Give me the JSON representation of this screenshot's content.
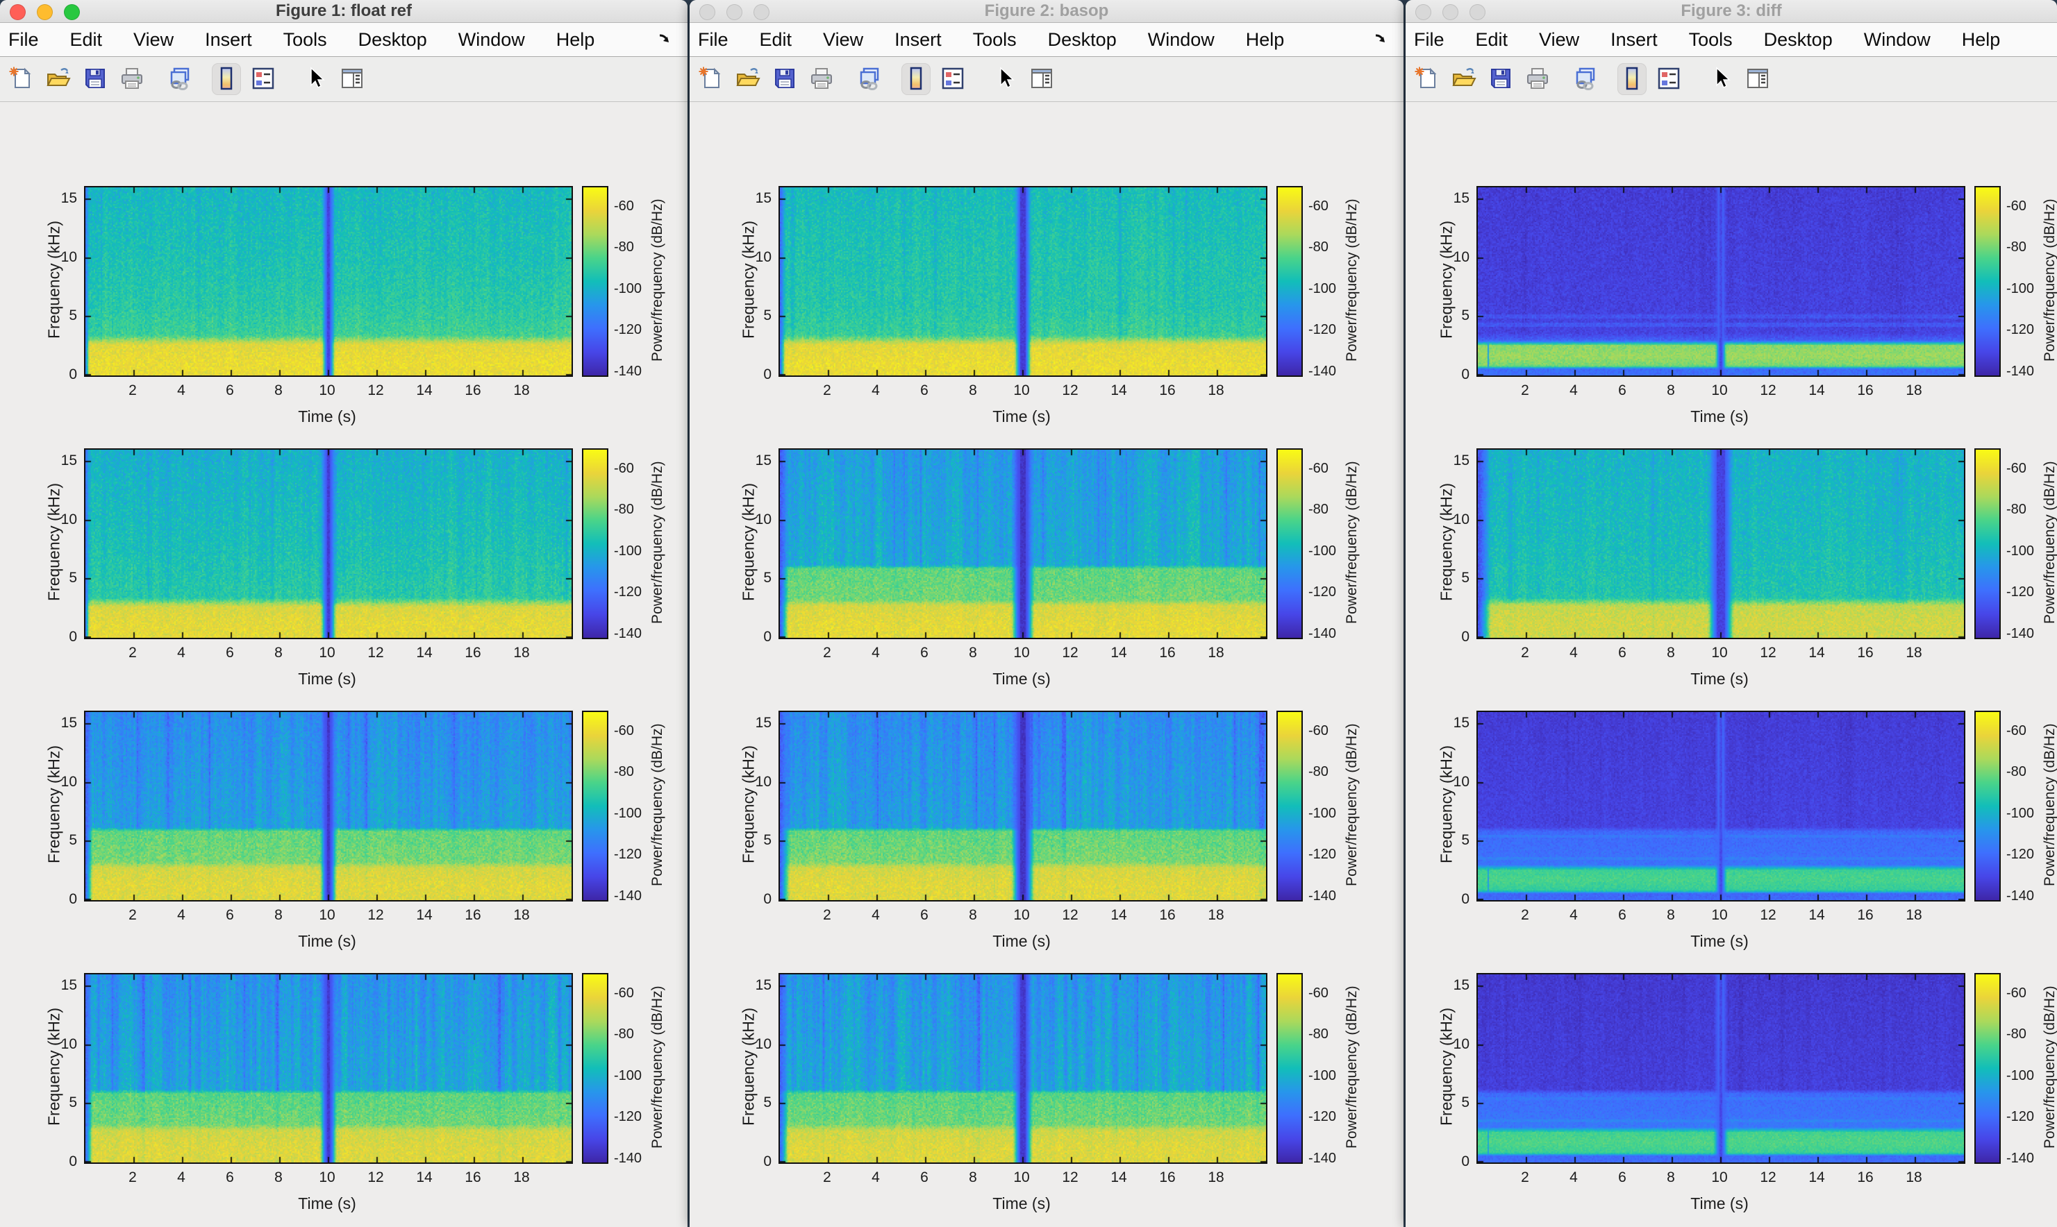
{
  "windows": [
    {
      "title": "Figure 1: float ref",
      "active": true,
      "menu": [
        "File",
        "Edit",
        "View",
        "Insert",
        "Tools",
        "Desktop",
        "Window",
        "Help"
      ],
      "menu_arrow": true,
      "charts": [
        {
          "name": "float-ref-spectrogram-1",
          "seed": 11,
          "noise_db": 5,
          "profile_khz_db": [
            [
              0,
              -61
            ],
            [
              1.0,
              -60
            ],
            [
              2.6,
              -63
            ],
            [
              3.4,
              -87
            ],
            [
              6,
              -91
            ],
            [
              10,
              -94
            ],
            [
              16,
              -97
            ]
          ],
          "streak": {
            "band_khz": [
              3,
              16
            ],
            "amp_db": 4.5
          },
          "features": {
            "left_stripe": {
              "width_s": 0.16,
              "level_db": -116
            },
            "gap": {
              "t_s": 10,
              "width_s": 0.1,
              "feather_s": 0.25,
              "level_db": -131
            }
          }
        },
        {
          "name": "float-ref-spectrogram-2",
          "seed": 22,
          "noise_db": 5,
          "profile_khz_db": [
            [
              0,
              -62
            ],
            [
              1.0,
              -62
            ],
            [
              2.6,
              -65
            ],
            [
              3.4,
              -91
            ],
            [
              8,
              -95
            ],
            [
              16,
              -100
            ]
          ],
          "streak": {
            "band_khz": [
              3,
              16
            ],
            "amp_db": 5.5
          },
          "features": {
            "left_stripe": {
              "width_s": 0.16,
              "level_db": -118
            },
            "gap": {
              "t_s": 10,
              "width_s": 0.12,
              "feather_s": 0.3,
              "level_db": -133
            }
          }
        },
        {
          "name": "float-ref-spectrogram-3",
          "seed": 33,
          "noise_db": 5,
          "profile_khz_db": [
            [
              0,
              -64
            ],
            [
              1.2,
              -63
            ],
            [
              2.7,
              -66
            ],
            [
              3.2,
              -79
            ],
            [
              5.85,
              -82
            ],
            [
              6.15,
              -105
            ],
            [
              16,
              -110
            ]
          ],
          "streak": {
            "band_khz": [
              6,
              16
            ],
            "amp_db": 10
          },
          "features": {
            "left_stripe": {
              "width_s": 0.3,
              "level_db": -122
            },
            "gap": {
              "t_s": 10,
              "width_s": 0.16,
              "feather_s": 0.3,
              "level_db": -135
            }
          }
        },
        {
          "name": "float-ref-spectrogram-4",
          "seed": 44,
          "noise_db": 5,
          "profile_khz_db": [
            [
              0,
              -64
            ],
            [
              1.2,
              -64
            ],
            [
              2.7,
              -67
            ],
            [
              3.2,
              -80
            ],
            [
              5.85,
              -83
            ],
            [
              6.15,
              -103
            ],
            [
              16,
              -108
            ]
          ],
          "streak": {
            "band_khz": [
              6,
              16
            ],
            "amp_db": 11
          },
          "features": {
            "left_stripe": {
              "width_s": 0.3,
              "level_db": -121
            },
            "gap": {
              "t_s": 10,
              "width_s": 0.16,
              "feather_s": 0.3,
              "level_db": -134
            }
          }
        }
      ]
    },
    {
      "title": "Figure 2: basop",
      "active": false,
      "menu": [
        "File",
        "Edit",
        "View",
        "Insert",
        "Tools",
        "Desktop",
        "Window",
        "Help"
      ],
      "menu_arrow": true,
      "charts": [
        {
          "name": "basop-spectrogram-1",
          "seed": 55,
          "noise_db": 5,
          "profile_khz_db": [
            [
              0,
              -61
            ],
            [
              1.0,
              -60
            ],
            [
              2.6,
              -63
            ],
            [
              3.4,
              -88
            ],
            [
              6,
              -92
            ],
            [
              10,
              -93
            ],
            [
              16,
              -96
            ]
          ],
          "streak": {
            "band_khz": [
              3,
              16
            ],
            "amp_db": 4.5
          },
          "features": {
            "left_stripe": {
              "width_s": 0.22,
              "level_db": -120
            },
            "gap": {
              "t_s": 10,
              "width_s": 0.18,
              "feather_s": 0.3,
              "level_db": -133
            }
          }
        },
        {
          "name": "basop-spectrogram-2",
          "seed": 66,
          "noise_db": 5,
          "profile_khz_db": [
            [
              0,
              -62
            ],
            [
              1.0,
              -62
            ],
            [
              2.7,
              -65
            ],
            [
              3.2,
              -80
            ],
            [
              5.85,
              -82
            ],
            [
              6.15,
              -101
            ],
            [
              16,
              -105
            ]
          ],
          "streak": {
            "band_khz": [
              6,
              16
            ],
            "amp_db": 9
          },
          "features": {
            "left_stripe": {
              "width_s": 0.35,
              "level_db": -124
            },
            "gap": {
              "t_s": 10,
              "width_s": 0.25,
              "feather_s": 0.4,
              "level_db": -136
            }
          }
        },
        {
          "name": "basop-spectrogram-3",
          "seed": 77,
          "noise_db": 5,
          "profile_khz_db": [
            [
              0,
              -64
            ],
            [
              1.2,
              -63
            ],
            [
              2.7,
              -66
            ],
            [
              3.2,
              -79
            ],
            [
              5.85,
              -82
            ],
            [
              6.15,
              -105
            ],
            [
              16,
              -110
            ]
          ],
          "streak": {
            "band_khz": [
              6,
              16
            ],
            "amp_db": 10
          },
          "features": {
            "left_stripe": {
              "width_s": 0.4,
              "level_db": -123
            },
            "gap": {
              "t_s": 10,
              "width_s": 0.25,
              "feather_s": 0.4,
              "level_db": -136
            }
          }
        },
        {
          "name": "basop-spectrogram-4",
          "seed": 88,
          "noise_db": 5,
          "profile_khz_db": [
            [
              0,
              -64
            ],
            [
              1.2,
              -64
            ],
            [
              2.7,
              -67
            ],
            [
              3.2,
              -80
            ],
            [
              5.85,
              -83
            ],
            [
              6.15,
              -103
            ],
            [
              16,
              -108
            ]
          ],
          "streak": {
            "band_khz": [
              6,
              16
            ],
            "amp_db": 11
          },
          "features": {
            "left_stripe": {
              "width_s": 0.35,
              "level_db": -121
            },
            "gap": {
              "t_s": 10,
              "width_s": 0.2,
              "feather_s": 0.35,
              "level_db": -134
            }
          }
        }
      ]
    },
    {
      "title": "Figure 3: diff",
      "active": false,
      "menu": [
        "File",
        "Edit",
        "View",
        "Insert",
        "Tools",
        "Desktop",
        "Window",
        "Help"
      ],
      "menu_arrow": false,
      "charts": [
        {
          "name": "diff-spectrogram-1",
          "seed": 99,
          "noise_db": 3.5,
          "profile_khz_db": [
            [
              0,
              -118
            ],
            [
              0.55,
              -119
            ],
            [
              0.8,
              -79
            ],
            [
              1.6,
              -75
            ],
            [
              2.55,
              -77
            ],
            [
              2.95,
              -122
            ],
            [
              3.6,
              -131
            ],
            [
              16,
              -133
            ]
          ],
          "streak": {
            "band_khz": [
              3,
              16
            ],
            "amp_db": 1.5
          },
          "hlines": [
            {
              "f_khz": 4.3,
              "halfwidth_khz": 0.15,
              "delta_db": 6
            },
            {
              "f_khz": 5.0,
              "halfwidth_khz": 0.12,
              "delta_db": 5
            }
          ],
          "features": {
            "left_line": {
              "t_s": 0.42,
              "width_s": 0.07,
              "level_db": -102
            },
            "gap": {
              "t_s": 10,
              "width_s": 0.1,
              "feather_s": 0.2,
              "level_db": -129
            }
          }
        },
        {
          "name": "diff-spectrogram-2",
          "seed": 111,
          "noise_db": 5,
          "profile_khz_db": [
            [
              0,
              -67
            ],
            [
              1.2,
              -66
            ],
            [
              2.7,
              -69
            ],
            [
              3.4,
              -93
            ],
            [
              8,
              -96
            ],
            [
              16,
              -99
            ]
          ],
          "streak": {
            "band_khz": [
              3,
              16
            ],
            "amp_db": 4
          },
          "features": {
            "left_stripe": {
              "width_s": 0.55,
              "level_db": -127
            },
            "gap": {
              "t_s": 10,
              "width_s": 0.3,
              "feather_s": 0.45,
              "level_db": -131
            }
          }
        },
        {
          "name": "diff-spectrogram-3",
          "seed": 122,
          "noise_db": 3,
          "profile_khz_db": [
            [
              0,
              -120
            ],
            [
              0.55,
              -121
            ],
            [
              0.8,
              -89
            ],
            [
              1.7,
              -85
            ],
            [
              2.55,
              -87
            ],
            [
              3.0,
              -117
            ],
            [
              5.8,
              -120
            ],
            [
              6.2,
              -131
            ],
            [
              16,
              -133
            ]
          ],
          "streak": {
            "band_khz": [
              6,
              16
            ],
            "amp_db": 1.5
          },
          "hlines": [
            {
              "f_khz": 3.5,
              "halfwidth_khz": 0.12,
              "delta_db": 4
            },
            {
              "f_khz": 5.4,
              "halfwidth_khz": 0.12,
              "delta_db": 4
            }
          ],
          "features": {
            "left_line": {
              "t_s": 0.42,
              "width_s": 0.07,
              "level_db": -104
            },
            "gap": {
              "t_s": 10,
              "width_s": 0.12,
              "feather_s": 0.2,
              "level_db": -128
            }
          }
        },
        {
          "name": "diff-spectrogram-4",
          "seed": 133,
          "noise_db": 3,
          "profile_khz_db": [
            [
              0,
              -119
            ],
            [
              0.55,
              -120
            ],
            [
              0.8,
              -87
            ],
            [
              1.7,
              -84
            ],
            [
              2.55,
              -86
            ],
            [
              3.0,
              -116
            ],
            [
              5.8,
              -119
            ],
            [
              6.2,
              -132
            ],
            [
              16,
              -134
            ]
          ],
          "streak": {
            "band_khz": [
              6,
              16
            ],
            "amp_db": 2
          },
          "hlines": [
            {
              "f_khz": 3.5,
              "halfwidth_khz": 0.12,
              "delta_db": 4
            },
            {
              "f_khz": 5.4,
              "halfwidth_khz": 0.12,
              "delta_db": 3
            }
          ],
          "features": {
            "left_line": {
              "t_s": 0.42,
              "width_s": 0.07,
              "level_db": -103
            },
            "gap": {
              "t_s": 10,
              "width_s": 0.14,
              "feather_s": 0.25,
              "level_db": -129
            }
          }
        }
      ]
    }
  ],
  "chart_common": {
    "type": "heatmap-spectrogram",
    "xlabel": "Time (s)",
    "ylabel": "Frequency (kHz)",
    "xticks": [
      2,
      4,
      6,
      8,
      10,
      12,
      14,
      16,
      18
    ],
    "yticks": [
      0,
      5,
      10,
      15
    ],
    "x_range_s": [
      0,
      20
    ],
    "y_range_khz": [
      0,
      16
    ],
    "colorbar": {
      "label": "Power/frequency (dB/Hz)",
      "ticks": [
        -60,
        -80,
        -100,
        -120,
        -140
      ],
      "db_range": [
        -141,
        -50
      ]
    }
  },
  "toolbar": {
    "items": [
      {
        "name": "new-figure",
        "icon": "new-document-icon",
        "active": false
      },
      {
        "name": "open-file",
        "icon": "open-folder-icon",
        "active": false
      },
      {
        "name": "save-figure",
        "icon": "save-icon",
        "active": false
      },
      {
        "name": "print-figure",
        "icon": "print-icon",
        "active": false
      },
      {
        "name": "link-plot",
        "icon": "link-plot-icon",
        "active": false
      },
      {
        "name": "insert-colorbar",
        "icon": "colorbar-icon",
        "active": true
      },
      {
        "name": "insert-legend",
        "icon": "legend-icon",
        "active": false
      },
      {
        "name": "edit-plot",
        "icon": "pointer-icon",
        "active": false
      },
      {
        "name": "plot-browser",
        "icon": "plot-browser-icon",
        "active": false
      }
    ]
  },
  "colors": {
    "traffic_close": "#ff5f57",
    "traffic_minimize": "#febc2e",
    "traffic_zoom": "#28c840",
    "traffic_inactive": "#d8d8d8",
    "figure_background": "#eeedec",
    "axis_text": "#1c1c1c",
    "parula": [
      "#3e26a8",
      "#4746e8",
      "#3e6ffe",
      "#2796eb",
      "#12beb9",
      "#4ad489",
      "#abd95b",
      "#ead43a",
      "#f9fb14"
    ]
  }
}
